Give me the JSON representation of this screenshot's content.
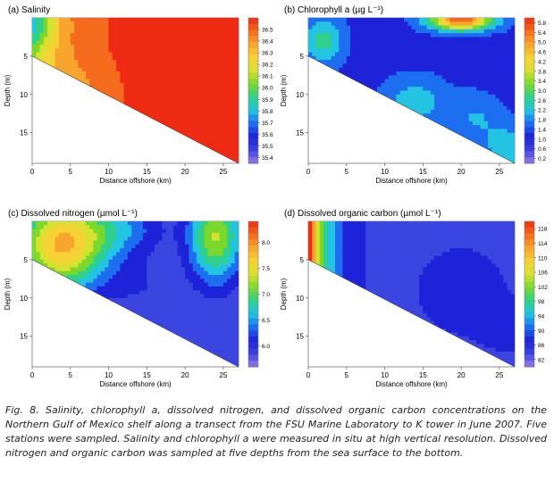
{
  "figure": {
    "caption": "Fig. 8. Salinity, chlorophyll a, dissolved nitrogen, and dissolved organic carbon concentrations on the Northern Gulf of Mexico shelf along a transect from the FSU Marine Laboratory to K tower in June 2007. Five stations were sampled. Salinity and chlorophyll a were measured in situ at high vertical resolution. Dissolved nitrogen and organic carbon was sampled at five depths from the sea surface to the bottom."
  },
  "chart_data": [
    {
      "type": "heatmap",
      "title": "(a) Salinity",
      "xlabel": "Distance offshore (km)",
      "ylabel": "Depth (m)",
      "xlim": [
        0,
        27
      ],
      "ylim": [
        19,
        0
      ],
      "x_ticks": [
        0,
        5,
        10,
        15,
        20,
        25
      ],
      "y_ticks": [
        5,
        10,
        15
      ],
      "bottom_profile": [
        [
          0,
          5
        ],
        [
          27,
          19
        ]
      ],
      "colorbar": {
        "ticks": [
          35.4,
          35.5,
          35.6,
          35.7,
          35.8,
          35.9,
          36.0,
          36.1,
          36.2,
          36.3,
          36.4,
          36.5
        ],
        "labels": [
          "35.4",
          "35.5",
          "35.6",
          "35.7",
          "35.8",
          "35.9",
          "36.0",
          "36.1",
          "36.2",
          "36.3",
          "36.4",
          "36.5"
        ],
        "min": 35.35,
        "max": 36.6
      }
    },
    {
      "type": "heatmap",
      "title": "(b) Chlorophyll a (µg L⁻¹)",
      "xlabel": "Distance offshore (km)",
      "ylabel": "Depth (m)",
      "xlim": [
        0,
        27
      ],
      "ylim": [
        19,
        0
      ],
      "x_ticks": [
        0,
        5,
        10,
        15,
        20,
        25
      ],
      "y_ticks": [
        5,
        10,
        15
      ],
      "bottom_profile": [
        [
          0,
          5
        ],
        [
          27,
          19
        ]
      ],
      "colorbar": {
        "ticks": [
          0.2,
          0.6,
          1.0,
          1.4,
          1.8,
          2.2,
          2.6,
          3.0,
          3.4,
          3.8,
          4.2,
          4.6,
          5.0,
          5.4,
          5.8
        ],
        "labels": [
          "0.2",
          "0.6",
          "1.0",
          "1.4",
          "1.8",
          "2.2",
          "2.6",
          "3.0",
          "3.4",
          "3.8",
          "4.2",
          "4.6",
          "5.0",
          "5.4",
          "5.8"
        ],
        "min": 0.0,
        "max": 6.0
      }
    },
    {
      "type": "heatmap",
      "title": "(c) Dissolved nitrogen (µmol L⁻¹)",
      "xlabel": "Distance offshore (km)",
      "ylabel": "Depth (m)",
      "xlim": [
        0,
        27
      ],
      "ylim": [
        19,
        0
      ],
      "x_ticks": [
        0,
        5,
        10,
        15,
        20,
        25
      ],
      "y_ticks": [
        5,
        10,
        15
      ],
      "bottom_profile": [
        [
          0,
          5
        ],
        [
          27,
          19
        ]
      ],
      "colorbar": {
        "ticks": [
          6.0,
          6.5,
          7.0,
          7.5,
          8.0
        ],
        "labels": [
          "6.0",
          "6.5",
          "7.0",
          "7.5",
          "8.0"
        ],
        "min": 5.6,
        "max": 8.4
      }
    },
    {
      "type": "heatmap",
      "title": "(d) Dissolved organic carbon (µmol L⁻¹)",
      "xlabel": "Distance offshore (km)",
      "ylabel": "Depth (m)",
      "xlim": [
        0,
        27
      ],
      "ylim": [
        19,
        0
      ],
      "x_ticks": [
        0,
        5,
        10,
        15,
        20,
        25
      ],
      "y_ticks": [
        5,
        10,
        15
      ],
      "bottom_profile": [
        [
          0,
          5
        ],
        [
          27,
          19
        ]
      ],
      "colorbar": {
        "ticks": [
          82,
          86,
          90,
          94,
          98,
          102,
          106,
          110,
          114,
          118
        ],
        "labels": [
          "82",
          "86",
          "90",
          "94",
          "98",
          "102",
          "106",
          "110",
          "114",
          "118"
        ],
        "min": 80,
        "max": 120
      }
    }
  ],
  "palette": [
    "#9b79e6",
    "#3b45e0",
    "#1e22d8",
    "#1d6ff0",
    "#22c4e2",
    "#2fd08a",
    "#7ad82c",
    "#d8e030",
    "#f7d234",
    "#f7a52c",
    "#f56b1e",
    "#ef2b14"
  ]
}
